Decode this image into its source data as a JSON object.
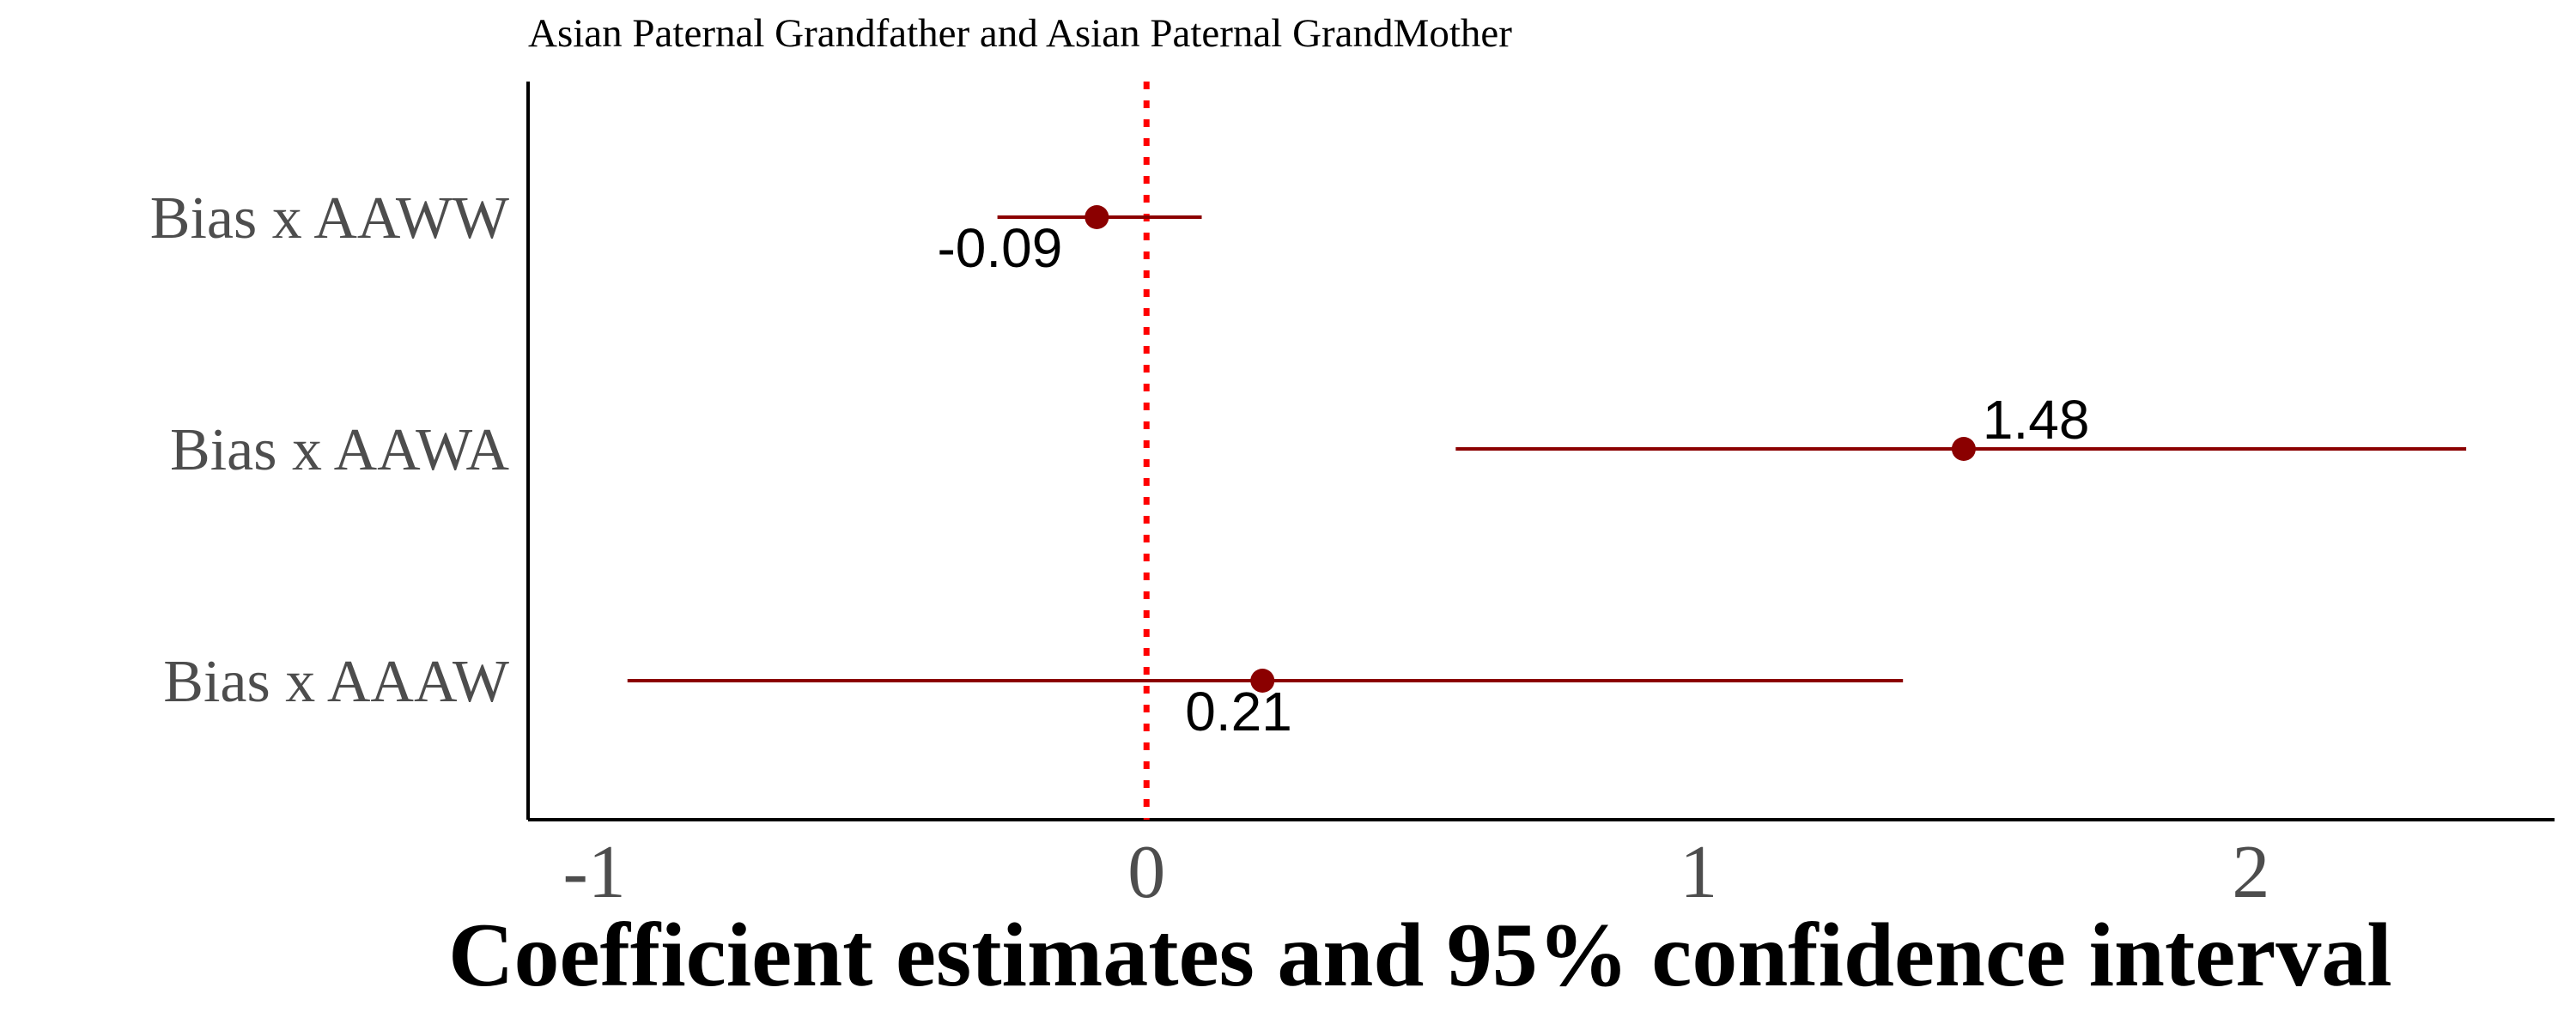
{
  "chart_data": {
    "type": "scatter",
    "title": "Asian Paternal Grandfather and Asian Paternal GrandMother",
    "xlabel": "Coefficient estimates and 95% confidence interval",
    "xlim": [
      -1.12,
      2.55
    ],
    "x_ticks": [
      -1,
      0,
      1,
      2
    ],
    "x_tick_labels": [
      "-1",
      "0",
      "1",
      "2"
    ],
    "categories": [
      "Bias x AAWW",
      "Bias x AAWA",
      "Bias x AAAW"
    ],
    "estimates": [
      -0.09,
      1.48,
      0.21
    ],
    "ci_low": [
      -0.27,
      0.56,
      -0.94
    ],
    "ci_high": [
      0.1,
      2.39,
      1.37
    ],
    "value_labels": [
      "-0.09",
      "1.48",
      "0.21"
    ],
    "reference_line": 0,
    "grid": false,
    "colors": {
      "point": "#8b0000",
      "reference_line": "#ff0000",
      "axis": "#000000",
      "tick_text": "#4d4d4d"
    }
  }
}
